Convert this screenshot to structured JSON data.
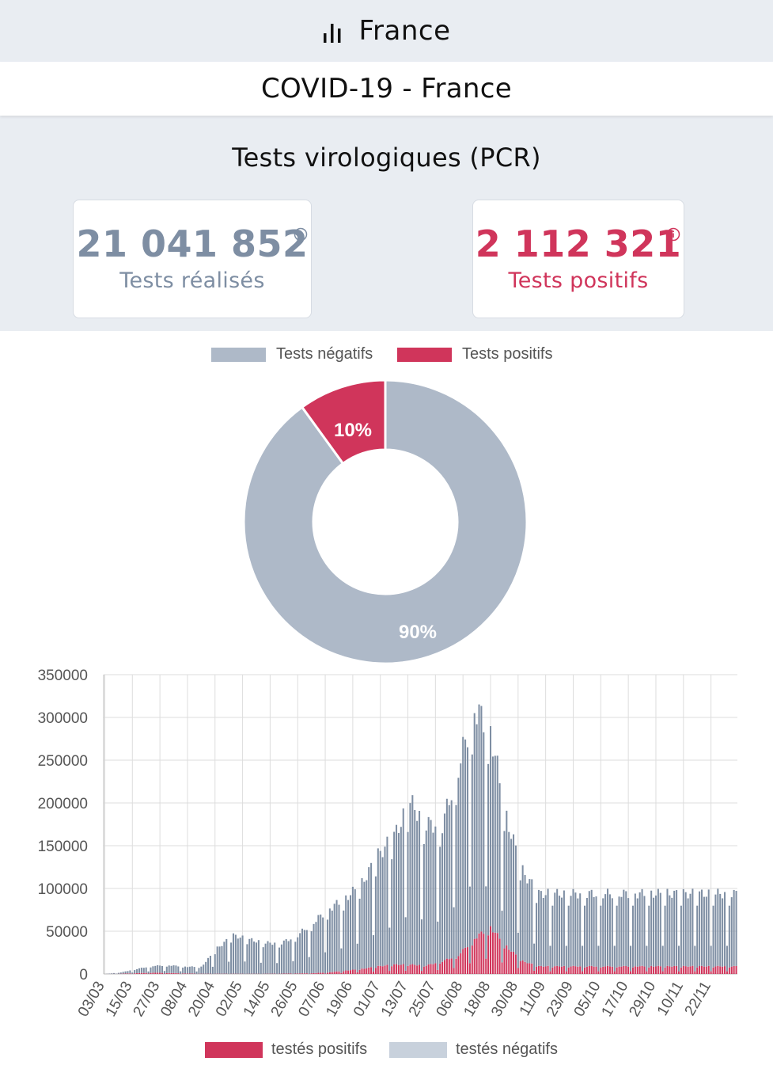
{
  "header": {
    "region": "France",
    "icon": "bar-chart-icon"
  },
  "page": {
    "title": "COVID-19 - France"
  },
  "section": {
    "title": "Tests virologiques (PCR)"
  },
  "cards": {
    "tests": {
      "value": "21 041 852",
      "label": "Tests réalisés",
      "color": "#7e8ea3"
    },
    "positives": {
      "value": "2 112 321",
      "label": "Tests positifs",
      "color": "#d0355b"
    }
  },
  "chart_data": [
    {
      "type": "pie",
      "variant": "doughnut",
      "legend": [
        "Tests négatifs",
        "Tests positifs"
      ],
      "legend_position": "top",
      "labels": [
        "Tests négatifs",
        "Tests positifs"
      ],
      "values": [
        90,
        10
      ],
      "data_labels": [
        "90%",
        "10%"
      ],
      "colors": [
        "#aeb9c8",
        "#d0355b"
      ]
    },
    {
      "type": "bar",
      "stacked": true,
      "grid": true,
      "legend_position": "bottom",
      "ylim": [
        0,
        350000
      ],
      "y_ticks": [
        0,
        50000,
        100000,
        150000,
        200000,
        250000,
        300000,
        350000
      ],
      "x_start": "03/03",
      "x_tick_labels": [
        "03/03",
        "15/03",
        "27/03",
        "08/04",
        "20/04",
        "02/05",
        "14/05",
        "26/05",
        "07/06",
        "19/06",
        "01/07",
        "13/07",
        "25/07",
        "06/08",
        "18/08",
        "30/08",
        "11/09",
        "23/09",
        "05/10",
        "17/10",
        "29/10",
        "10/11",
        "22/11"
      ],
      "series": [
        {
          "name": "testés positifs",
          "color": "#d0355b",
          "weekly_mean": [
            0,
            300,
            1000,
            1500,
            1200,
            600,
            300,
            300,
            300,
            250,
            300,
            400,
            600,
            1000,
            2000,
            4000,
            6000,
            9000,
            11000,
            11000,
            10000,
            15000,
            22000,
            42000,
            55000,
            32000,
            15000,
            9000
          ],
          "peak": 70000
        },
        {
          "name": "testés négatifs",
          "color": "#c8d1dc",
          "weekly_mean": [
            0,
            1500,
            5000,
            8000,
            9000,
            8000,
            8000,
            30000,
            45000,
            40000,
            36000,
            36000,
            45000,
            60000,
            75000,
            85000,
            100000,
            130000,
            150000,
            190000,
            165000,
            160000,
            220000,
            270000,
            230000,
            150000,
            105000,
            85000
          ],
          "peak": 245000
        }
      ]
    }
  ]
}
